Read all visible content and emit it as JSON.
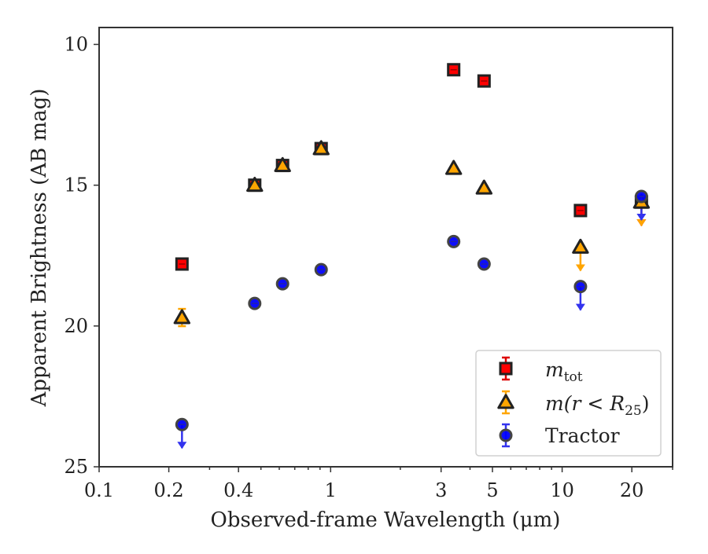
{
  "chart_data": {
    "type": "scatter",
    "x_scale": "log",
    "y_inverted": true,
    "xlim": [
      0.1,
      30
    ],
    "ylim": [
      25,
      9.4
    ],
    "xlabel": "Observed-frame Wavelength (μm)",
    "ylabel": "Apparent Brightness (AB mag)",
    "x_ticks": [
      0.1,
      0.2,
      0.4,
      1,
      3,
      5,
      10,
      20
    ],
    "x_tick_labels": [
      "0.1",
      "0.2",
      "0.4",
      "1",
      "3",
      "5",
      "10",
      "20"
    ],
    "y_ticks": [
      10,
      15,
      20,
      25
    ],
    "y_tick_labels": [
      "10",
      "15",
      "20",
      "25"
    ],
    "legend": {
      "placement": "lower-right"
    },
    "series": [
      {
        "key": "mtot",
        "name": "m_tot",
        "marker": "square",
        "color": "#ff0000",
        "edge": "#222222",
        "errcolor": "#dd0000",
        "x": [
          0.228,
          0.47,
          0.62,
          0.91,
          3.4,
          4.6,
          12.0,
          22.0
        ],
        "y": [
          17.8,
          15.0,
          14.3,
          13.7,
          10.9,
          11.3,
          15.9,
          15.6
        ],
        "upper_limit": [
          false,
          false,
          false,
          false,
          false,
          false,
          false,
          true
        ]
      },
      {
        "key": "mr25",
        "name": "m(r < R25)",
        "marker": "triangle",
        "color": "#ffa500",
        "edge": "#222222",
        "errcolor": "#ffa500",
        "x": [
          0.228,
          0.47,
          0.62,
          0.91,
          3.4,
          4.6,
          12.0,
          22.0
        ],
        "y": [
          19.7,
          15.0,
          14.3,
          13.7,
          14.4,
          15.1,
          17.2,
          15.6
        ],
        "upper_limit": [
          false,
          false,
          false,
          false,
          false,
          false,
          true,
          true
        ]
      },
      {
        "key": "tractor",
        "name": "Tractor",
        "marker": "circle",
        "color": "#0000ff",
        "edge": "#444444",
        "errcolor": "#3333ee",
        "x": [
          0.228,
          0.47,
          0.62,
          0.91,
          3.4,
          4.6,
          12.0,
          22.0
        ],
        "y": [
          23.5,
          19.2,
          18.5,
          18.0,
          17.0,
          17.8,
          18.6,
          15.4
        ],
        "upper_limit": [
          true,
          false,
          false,
          false,
          false,
          false,
          true,
          true
        ]
      }
    ]
  },
  "legend_labels": {
    "mtot_main": "m",
    "mtot_sub": "tot",
    "mr25_text": "m(r < R",
    "mr25_sub": "25",
    "mr25_close": ")",
    "tractor": "Tractor"
  }
}
